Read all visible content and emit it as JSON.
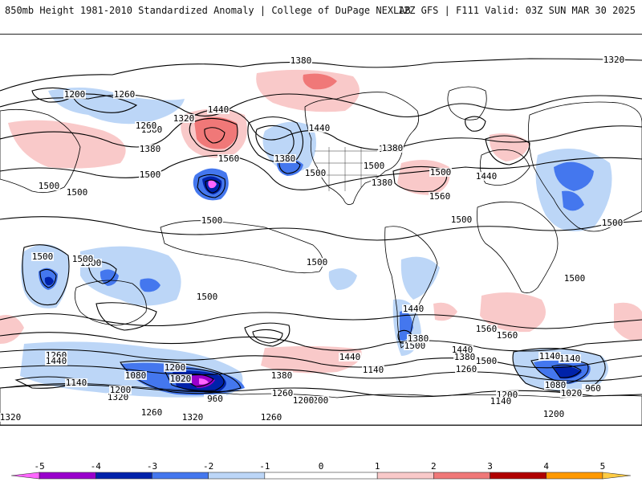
{
  "header": {
    "left": "850mb Height 1981-2010 Standardized Anomaly | College of DuPage NEXLAB",
    "right": "12Z GFS | F111 Valid: 03Z SUN MAR 30 2025"
  },
  "colorbar": {
    "min": -5.5,
    "max": 5.5,
    "ticks": [
      -5,
      -4,
      -3,
      -2,
      -1,
      0,
      1,
      2,
      3,
      4,
      5
    ],
    "bins": [
      {
        "from": -5.5,
        "to": -5,
        "color": "#ff66ff"
      },
      {
        "from": -5,
        "to": -4,
        "color": "#9900cc"
      },
      {
        "from": -4,
        "to": -3,
        "color": "#0022aa"
      },
      {
        "from": -3,
        "to": -2,
        "color": "#4477ee"
      },
      {
        "from": -2,
        "to": -1,
        "color": "#bcd6f7"
      },
      {
        "from": -1,
        "to": 1,
        "color": "#ffffff"
      },
      {
        "from": 1,
        "to": 2,
        "color": "#f9c9c9"
      },
      {
        "from": 2,
        "to": 3,
        "color": "#f07878"
      },
      {
        "from": 3,
        "to": 4,
        "color": "#b00000"
      },
      {
        "from": 4,
        "to": 5,
        "color": "#ff9900"
      },
      {
        "from": 5,
        "to": 5.5,
        "color": "#ffcc44"
      }
    ]
  },
  "map": {
    "contour_labels": [
      "1380",
      "1320",
      "1200",
      "1260",
      "1440",
      "1380",
      "1260",
      "1320",
      "1380",
      "1500",
      "1560",
      "1380",
      "1500",
      "1440",
      "1440",
      "1380",
      "1500",
      "1560",
      "1500",
      "1440",
      "1380",
      "1500",
      "1500",
      "1500",
      "1500",
      "1500",
      "1500",
      "1500",
      "1500",
      "1500",
      "1500",
      "1500",
      "1440",
      "1560",
      "1500",
      "1440",
      "1380",
      "1260",
      "1080",
      "1140",
      "1200",
      "1020",
      "960",
      "1320",
      "1200",
      "1260",
      "1140",
      "1380",
      "1260",
      "1200",
      "1320",
      "1260",
      "1440",
      "1560",
      "1500",
      "1380",
      "1260",
      "1200",
      "1140",
      "1080",
      "1020",
      "960",
      "1200",
      "1140",
      "1440",
      "1320",
      "1200",
      "1140"
    ],
    "colors": {
      "neg_light": "#bcd6f7",
      "neg_mid": "#4477ee",
      "neg_dark": "#0022aa",
      "neg_extreme": "#9900cc",
      "neg_max": "#ff66ff",
      "pos_light": "#f9c9c9",
      "pos_mid": "#f07878",
      "pos_dark": "#b00000"
    }
  }
}
